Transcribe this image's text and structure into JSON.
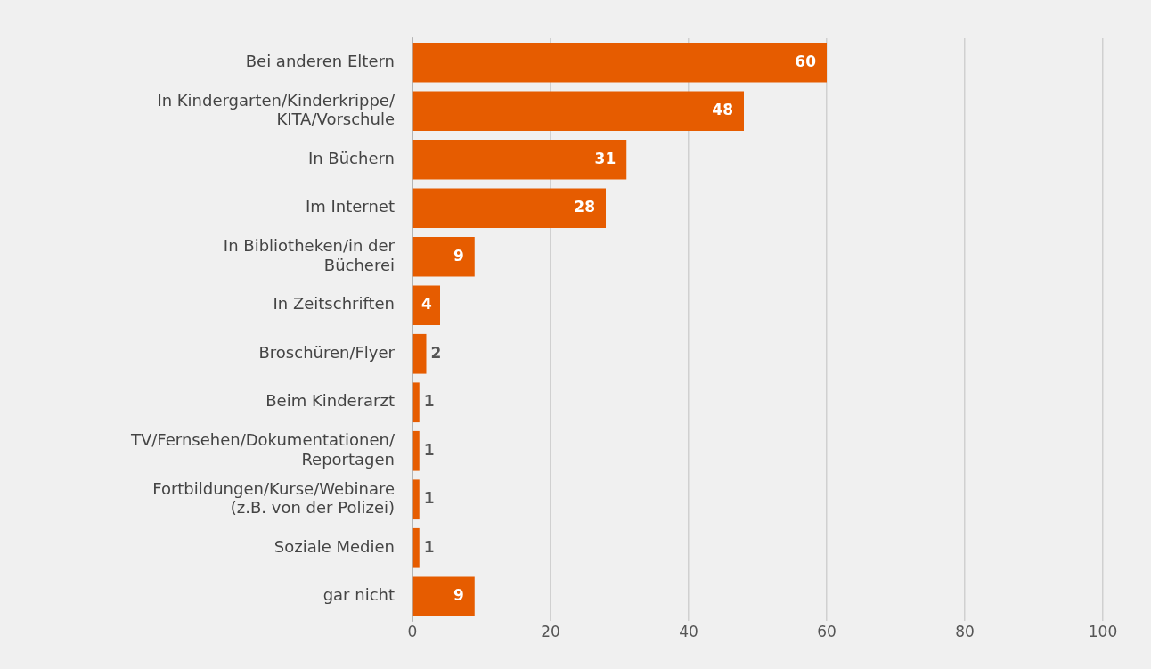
{
  "chart_data": {
    "type": "bar",
    "orientation": "horizontal",
    "categories": [
      "Bei anderen Eltern",
      "In Kindergarten/Kinderkrippe/KITA/Vorschule",
      "In Büchern",
      "Im Internet",
      "In Bibliotheken/in der Bücherei",
      "In Zeitschriften",
      "Broschüren/Flyer",
      "Beim Kinderarzt",
      "TV/Fernsehen/Dokumentationen/Reportagen",
      "Fortbildungen/Kurse/Webinare (z.B. von der Polizei)",
      "Soziale Medien",
      "gar nicht"
    ],
    "values": [
      60,
      48,
      31,
      28,
      9,
      4,
      2,
      1,
      1,
      1,
      1,
      9
    ],
    "color": "#e65c00",
    "xlim": [
      0,
      100
    ],
    "xticks": [
      0,
      20,
      40,
      60,
      80,
      100
    ],
    "grid": "x",
    "legend": false,
    "data_labels": true
  }
}
